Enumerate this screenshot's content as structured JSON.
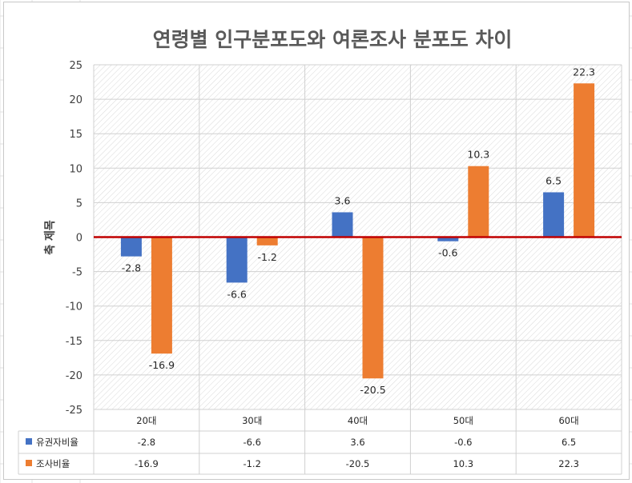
{
  "chart_data": {
    "type": "bar",
    "title": "연령별 인구분포도와 여론조사 분포도 차이",
    "ylabel": "축 제목",
    "xlabel": "",
    "ylim": [
      -25,
      25
    ],
    "y_ticks": [
      25,
      20,
      15,
      10,
      5,
      0,
      -5,
      -10,
      -15,
      -20,
      -25
    ],
    "categories": [
      "20대",
      "30대",
      "40대",
      "50대",
      "60대"
    ],
    "series": [
      {
        "name": "유권자비율",
        "color": "#4472c4",
        "values": [
          -2.8,
          -6.6,
          3.6,
          -0.6,
          6.5
        ]
      },
      {
        "name": "조사비율",
        "color": "#ed7d31",
        "values": [
          -16.9,
          -1.2,
          -20.5,
          10.3,
          22.3
        ]
      }
    ],
    "zero_line_color": "#c00000",
    "grid": true,
    "data_table": true
  }
}
